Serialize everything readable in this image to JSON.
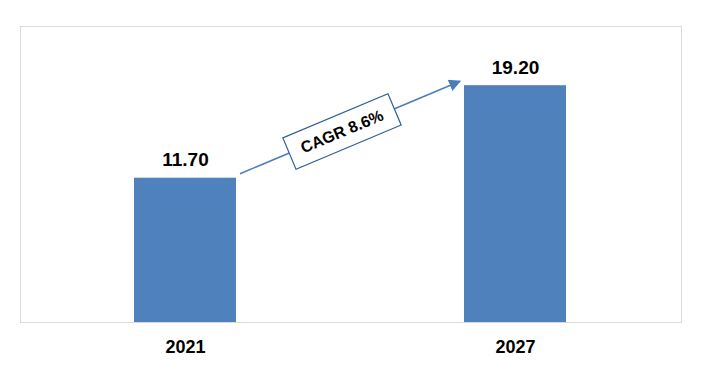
{
  "chart_data": {
    "type": "bar",
    "categories": [
      "2021",
      "2027"
    ],
    "values": [
      11.7,
      19.2
    ],
    "value_labels": [
      "11.70",
      "19.20"
    ],
    "color": "#4f81bd",
    "ylim": [
      0,
      24
    ],
    "data_labels": true,
    "tick_labels": "x",
    "annotation": "CAGR 8.6%"
  }
}
